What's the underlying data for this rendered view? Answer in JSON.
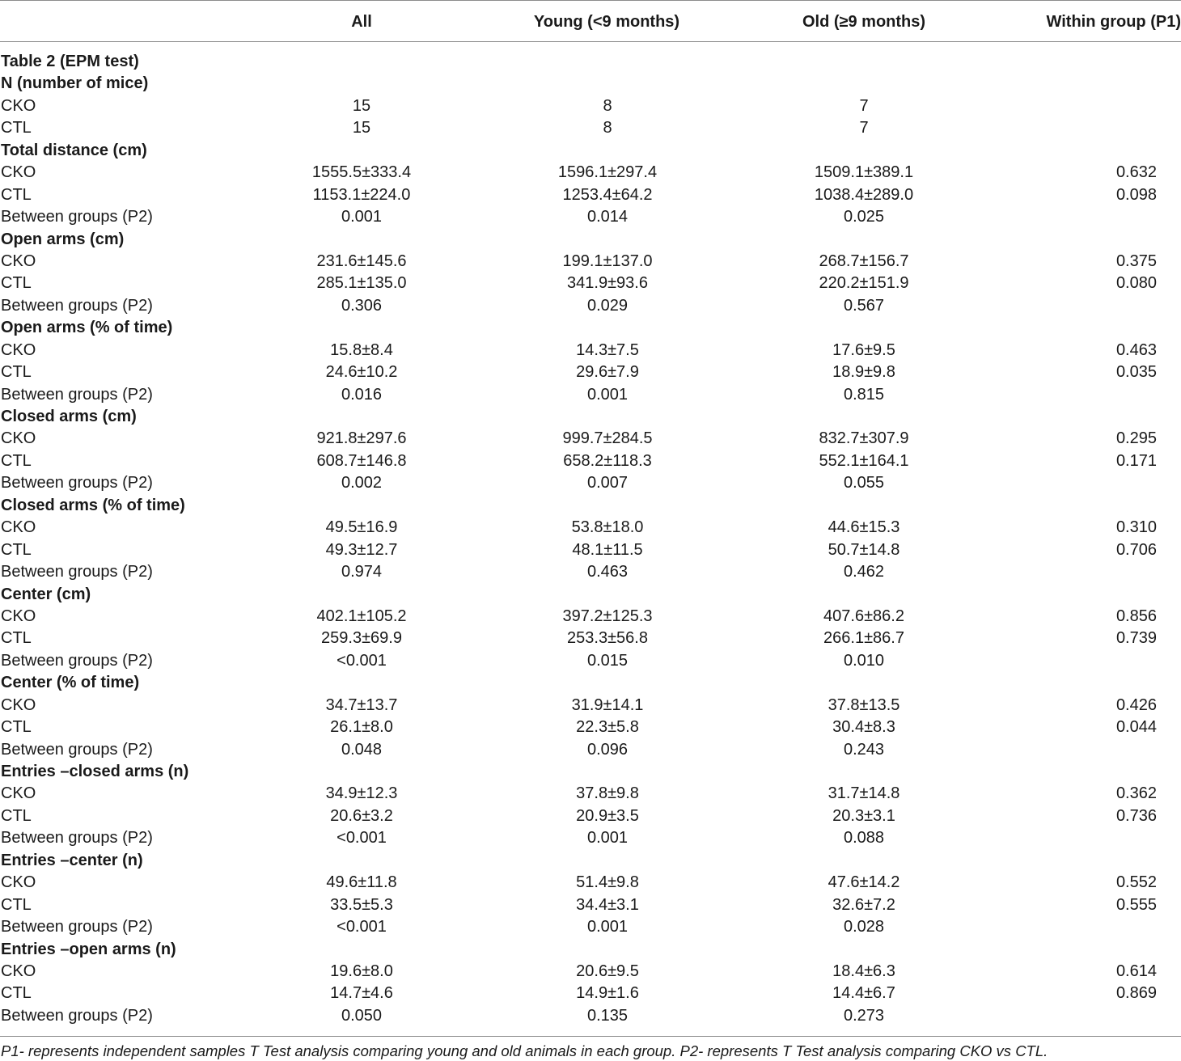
{
  "header": {
    "all": "All",
    "young": "Young (<9 months)",
    "old": "Old (≥9 months)",
    "within": "Within group (P1)"
  },
  "rows": [
    {
      "label": "Table 2 (EPM test)",
      "section": true,
      "all": "",
      "young": "",
      "old": "",
      "p1": ""
    },
    {
      "label": "N (number of mice)",
      "section": true,
      "all": "",
      "young": "",
      "old": "",
      "p1": ""
    },
    {
      "label": "CKO",
      "section": false,
      "all": "15",
      "young": "8",
      "old": "7",
      "p1": ""
    },
    {
      "label": "CTL",
      "section": false,
      "all": "15",
      "young": "8",
      "old": "7",
      "p1": ""
    },
    {
      "label": "Total distance (cm)",
      "section": true,
      "all": "",
      "young": "",
      "old": "",
      "p1": ""
    },
    {
      "label": "CKO",
      "section": false,
      "all": "1555.5±333.4",
      "young": "1596.1±297.4",
      "old": "1509.1±389.1",
      "p1": "0.632"
    },
    {
      "label": "CTL",
      "section": false,
      "all": "1153.1±224.0",
      "young": "1253.4±64.2",
      "old": "1038.4±289.0",
      "p1": "0.098"
    },
    {
      "label": "Between groups (P2)",
      "section": false,
      "all": "0.001",
      "young": "0.014",
      "old": "0.025",
      "p1": ""
    },
    {
      "label": "Open arms (cm)",
      "section": true,
      "all": "",
      "young": "",
      "old": "",
      "p1": ""
    },
    {
      "label": "CKO",
      "section": false,
      "all": "231.6±145.6",
      "young": "199.1±137.0",
      "old": "268.7±156.7",
      "p1": "0.375"
    },
    {
      "label": "CTL",
      "section": false,
      "all": "285.1±135.0",
      "young": "341.9±93.6",
      "old": "220.2±151.9",
      "p1": "0.080"
    },
    {
      "label": "Between groups (P2)",
      "section": false,
      "all": "0.306",
      "young": "0.029",
      "old": "0.567",
      "p1": ""
    },
    {
      "label": "Open arms (% of time)",
      "section": true,
      "all": "",
      "young": "",
      "old": "",
      "p1": ""
    },
    {
      "label": "CKO",
      "section": false,
      "all": "15.8±8.4",
      "young": "14.3±7.5",
      "old": "17.6±9.5",
      "p1": "0.463"
    },
    {
      "label": "CTL",
      "section": false,
      "all": "24.6±10.2",
      "young": "29.6±7.9",
      "old": "18.9±9.8",
      "p1": "0.035"
    },
    {
      "label": "Between groups (P2)",
      "section": false,
      "all": "0.016",
      "young": "0.001",
      "old": "0.815",
      "p1": ""
    },
    {
      "label": "Closed arms (cm)",
      "section": true,
      "all": "",
      "young": "",
      "old": "",
      "p1": ""
    },
    {
      "label": "CKO",
      "section": false,
      "all": "921.8±297.6",
      "young": "999.7±284.5",
      "old": "832.7±307.9",
      "p1": "0.295"
    },
    {
      "label": "CTL",
      "section": false,
      "all": "608.7±146.8",
      "young": "658.2±118.3",
      "old": "552.1±164.1",
      "p1": "0.171"
    },
    {
      "label": "Between groups (P2)",
      "section": false,
      "all": "0.002",
      "young": "0.007",
      "old": "0.055",
      "p1": ""
    },
    {
      "label": "Closed arms (% of time)",
      "section": true,
      "all": "",
      "young": "",
      "old": "",
      "p1": ""
    },
    {
      "label": "CKO",
      "section": false,
      "all": "49.5±16.9",
      "young": "53.8±18.0",
      "old": "44.6±15.3",
      "p1": "0.310"
    },
    {
      "label": "CTL",
      "section": false,
      "all": "49.3±12.7",
      "young": "48.1±11.5",
      "old": "50.7±14.8",
      "p1": "0.706"
    },
    {
      "label": "Between groups (P2)",
      "section": false,
      "all": "0.974",
      "young": "0.463",
      "old": "0.462",
      "p1": ""
    },
    {
      "label": "Center (cm)",
      "section": true,
      "all": "",
      "young": "",
      "old": "",
      "p1": ""
    },
    {
      "label": "CKO",
      "section": false,
      "all": "402.1±105.2",
      "young": "397.2±125.3",
      "old": "407.6±86.2",
      "p1": "0.856"
    },
    {
      "label": "CTL",
      "section": false,
      "all": "259.3±69.9",
      "young": "253.3±56.8",
      "old": "266.1±86.7",
      "p1": "0.739"
    },
    {
      "label": "Between groups (P2)",
      "section": false,
      "all": "<0.001",
      "young": "0.015",
      "old": "0.010",
      "p1": ""
    },
    {
      "label": "Center (% of time)",
      "section": true,
      "all": "",
      "young": "",
      "old": "",
      "p1": ""
    },
    {
      "label": "CKO",
      "section": false,
      "all": "34.7±13.7",
      "young": "31.9±14.1",
      "old": "37.8±13.5",
      "p1": "0.426"
    },
    {
      "label": "CTL",
      "section": false,
      "all": "26.1±8.0",
      "young": "22.3±5.8",
      "old": "30.4±8.3",
      "p1": "0.044"
    },
    {
      "label": "Between groups (P2)",
      "section": false,
      "all": "0.048",
      "young": "0.096",
      "old": "0.243",
      "p1": ""
    },
    {
      "label": "Entries –closed arms (n)",
      "section": true,
      "all": "",
      "young": "",
      "old": "",
      "p1": ""
    },
    {
      "label": "CKO",
      "section": false,
      "all": "34.9±12.3",
      "young": "37.8±9.8",
      "old": "31.7±14.8",
      "p1": "0.362"
    },
    {
      "label": "CTL",
      "section": false,
      "all": "20.6±3.2",
      "young": "20.9±3.5",
      "old": "20.3±3.1",
      "p1": "0.736"
    },
    {
      "label": "Between groups (P2)",
      "section": false,
      "all": "<0.001",
      "young": "0.001",
      "old": "0.088",
      "p1": ""
    },
    {
      "label": "Entries –center (n)",
      "section": true,
      "all": "",
      "young": "",
      "old": "",
      "p1": ""
    },
    {
      "label": "CKO",
      "section": false,
      "all": "49.6±11.8",
      "young": "51.4±9.8",
      "old": "47.6±14.2",
      "p1": "0.552"
    },
    {
      "label": "CTL",
      "section": false,
      "all": "33.5±5.3",
      "young": "34.4±3.1",
      "old": "32.6±7.2",
      "p1": "0.555"
    },
    {
      "label": "Between groups (P2)",
      "section": false,
      "all": "<0.001",
      "young": "0.001",
      "old": "0.028",
      "p1": ""
    },
    {
      "label": "Entries –open arms (n)",
      "section": true,
      "all": "",
      "young": "",
      "old": "",
      "p1": ""
    },
    {
      "label": "CKO",
      "section": false,
      "all": "19.6±8.0",
      "young": "20.6±9.5",
      "old": "18.4±6.3",
      "p1": "0.614"
    },
    {
      "label": "CTL",
      "section": false,
      "all": "14.7±4.6",
      "young": "14.9±1.6",
      "old": "14.4±6.7",
      "p1": "0.869"
    },
    {
      "label": "Between groups (P2)",
      "section": false,
      "all": "0.050",
      "young": "0.135",
      "old": "0.273",
      "p1": ""
    }
  ],
  "footnote": "P1- represents independent samples T Test analysis comparing young and old animals in each group. P2- represents T Test analysis comparing CKO vs CTL."
}
